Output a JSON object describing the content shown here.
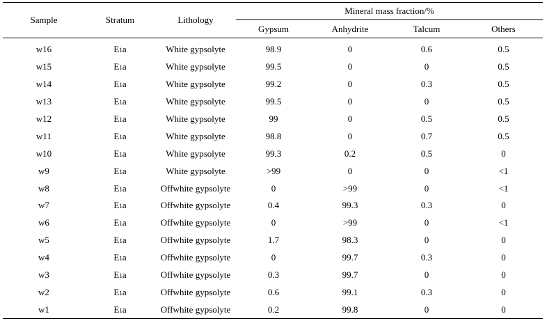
{
  "header": {
    "sample": "Sample",
    "stratum": "Stratum",
    "lithology": "Lithology",
    "group": "Mineral mass fraction/%",
    "gypsum": "Gypsum",
    "anhydrite": "Anhydrite",
    "talcum": "Talcum",
    "others": "Others"
  },
  "stratum": {
    "base": "E",
    "sub": "1",
    "suffix": "a"
  },
  "rows": [
    {
      "sample": "w16",
      "lithology": "White gypsolyte",
      "gypsum": "98.9",
      "anhydrite": "0",
      "talcum": "0.6",
      "others": "0.5"
    },
    {
      "sample": "w15",
      "lithology": "White gypsolyte",
      "gypsum": "99.5",
      "anhydrite": "0",
      "talcum": "0",
      "others": "0.5"
    },
    {
      "sample": "w14",
      "lithology": "White gypsolyte",
      "gypsum": "99.2",
      "anhydrite": "0",
      "talcum": "0.3",
      "others": "0.5"
    },
    {
      "sample": "w13",
      "lithology": "White gypsolyte",
      "gypsum": "99.5",
      "anhydrite": "0",
      "talcum": "0",
      "others": "0.5"
    },
    {
      "sample": "w12",
      "lithology": "White gypsolyte",
      "gypsum": "99",
      "anhydrite": "0",
      "talcum": "0.5",
      "others": "0.5"
    },
    {
      "sample": "w11",
      "lithology": "White gypsolyte",
      "gypsum": "98.8",
      "anhydrite": "0",
      "talcum": "0.7",
      "others": "0.5"
    },
    {
      "sample": "w10",
      "lithology": "White gypsolyte",
      "gypsum": "99.3",
      "anhydrite": "0.2",
      "talcum": "0.5",
      "others": "0"
    },
    {
      "sample": "w9",
      "lithology": "White gypsolyte",
      "gypsum": ">99",
      "anhydrite": "0",
      "talcum": "0",
      "others": "<1"
    },
    {
      "sample": "w8",
      "lithology": "Offwhite gypsolyte",
      "gypsum": "0",
      "anhydrite": ">99",
      "talcum": "0",
      "others": "<1"
    },
    {
      "sample": "w7",
      "lithology": "Offwhite gypsolyte",
      "gypsum": "0.4",
      "anhydrite": "99.3",
      "talcum": "0.3",
      "others": "0"
    },
    {
      "sample": "w6",
      "lithology": "Offwhite gypsolyte",
      "gypsum": "0",
      "anhydrite": ">99",
      "talcum": "0",
      "others": "<1"
    },
    {
      "sample": "w5",
      "lithology": "Offwhite gypsolyte",
      "gypsum": "1.7",
      "anhydrite": "98.3",
      "talcum": "0",
      "others": "0"
    },
    {
      "sample": "w4",
      "lithology": "Offwhite gypsolyte",
      "gypsum": "0",
      "anhydrite": "99.7",
      "talcum": "0.3",
      "others": "0"
    },
    {
      "sample": "w3",
      "lithology": "Offwhite gypsolyte",
      "gypsum": "0.3",
      "anhydrite": "99.7",
      "talcum": "0",
      "others": "0"
    },
    {
      "sample": "w2",
      "lithology": "Offwhite gypsolyte",
      "gypsum": "0.6",
      "anhydrite": "99.1",
      "talcum": "0.3",
      "others": "0"
    },
    {
      "sample": "w1",
      "lithology": "Offwhite gypsolyte",
      "gypsum": "0.2",
      "anhydrite": "99.8",
      "talcum": "0",
      "others": "0"
    }
  ]
}
